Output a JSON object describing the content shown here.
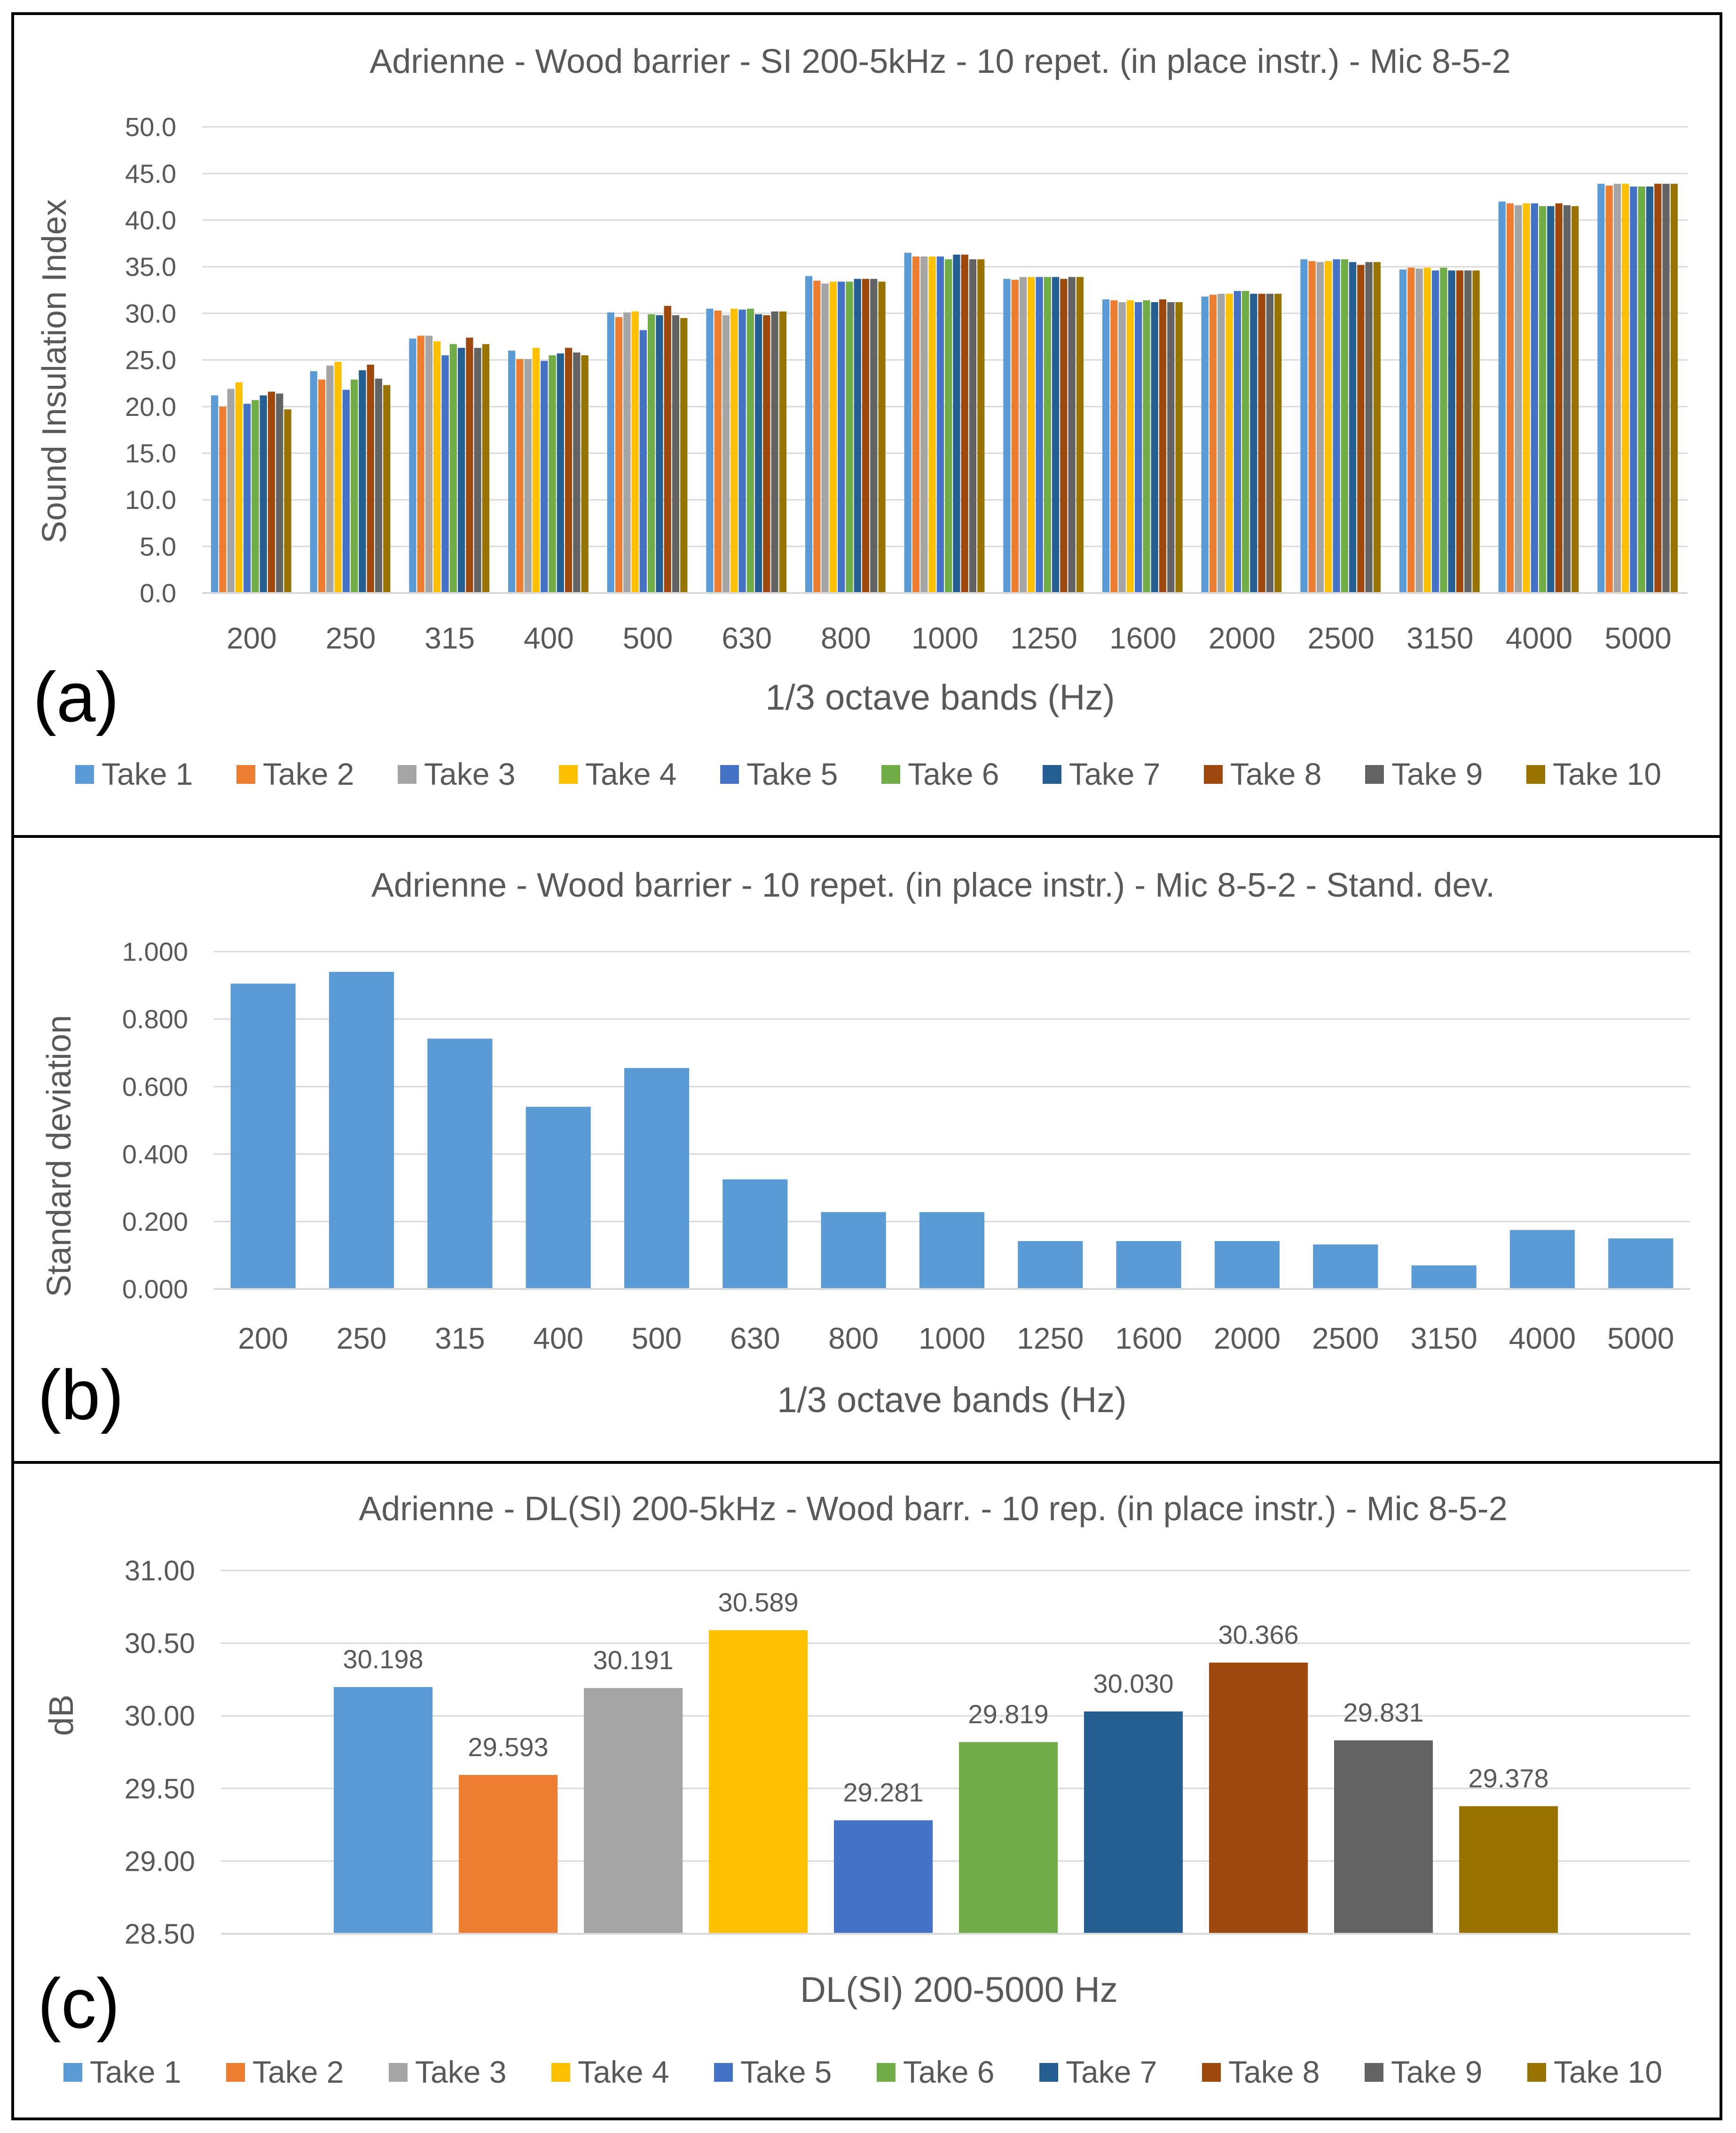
{
  "panels": {
    "a": {
      "label": "(a)"
    },
    "b": {
      "label": "(b)"
    },
    "c": {
      "label": "(c)"
    }
  },
  "colors": {
    "take_colors": [
      "#5B9BD5",
      "#ED7D31",
      "#A5A5A5",
      "#FFC000",
      "#4472C4",
      "#70AD47",
      "#255E91",
      "#9E480E",
      "#636363",
      "#997300"
    ],
    "single_bar": "#5B9BD5",
    "grid": "#D9D9D9",
    "axis": "#D9D9D9",
    "text": "#595959",
    "border": "#000000"
  },
  "chart_data": [
    {
      "id": "a",
      "type": "bar",
      "title": "Adrienne - Wood barrier - SI 200-5kHz - 10 repet. (in place instr.) - Mic 8-5-2",
      "xlabel": "1/3 octave bands (Hz)",
      "ylabel": "Sound Insulation Index",
      "ylim": [
        0,
        50
      ],
      "ytick_step": 5,
      "ytick_labels": [
        "0.0",
        "5.0",
        "10.0",
        "15.0",
        "20.0",
        "25.0",
        "30.0",
        "35.0",
        "40.0",
        "45.0",
        "50.0"
      ],
      "grid": true,
      "legend": "bottom",
      "categories": [
        "200",
        "250",
        "315",
        "400",
        "500",
        "630",
        "800",
        "1000",
        "1250",
        "1600",
        "2000",
        "2500",
        "3150",
        "4000",
        "5000"
      ],
      "series": [
        {
          "name": "Take 1",
          "values": [
            21.2,
            23.8,
            27.3,
            26.0,
            30.1,
            30.5,
            34.0,
            36.5,
            33.7,
            31.5,
            31.8,
            35.8,
            34.7,
            42.0,
            43.9
          ]
        },
        {
          "name": "Take 2",
          "values": [
            20.0,
            22.9,
            27.6,
            25.1,
            29.6,
            30.3,
            33.5,
            36.1,
            33.6,
            31.4,
            32.0,
            35.6,
            34.9,
            41.8,
            43.7
          ]
        },
        {
          "name": "Take 3",
          "values": [
            21.9,
            24.4,
            27.6,
            25.1,
            30.1,
            29.8,
            33.2,
            36.1,
            33.9,
            31.2,
            32.1,
            35.5,
            34.8,
            41.6,
            43.9
          ]
        },
        {
          "name": "Take 4",
          "values": [
            22.6,
            24.8,
            27.0,
            26.3,
            30.2,
            30.5,
            33.4,
            36.1,
            33.9,
            31.4,
            32.1,
            35.6,
            34.9,
            41.8,
            43.9
          ]
        },
        {
          "name": "Take 5",
          "values": [
            20.3,
            21.8,
            25.5,
            24.9,
            28.2,
            30.4,
            33.4,
            36.1,
            33.9,
            31.2,
            32.4,
            35.8,
            34.6,
            41.8,
            43.6
          ]
        },
        {
          "name": "Take 6",
          "values": [
            20.7,
            22.9,
            26.7,
            25.5,
            29.9,
            30.5,
            33.4,
            35.8,
            33.9,
            31.4,
            32.4,
            35.8,
            34.9,
            41.5,
            43.6
          ]
        },
        {
          "name": "Take 7",
          "values": [
            21.2,
            23.9,
            26.3,
            25.7,
            29.8,
            29.9,
            33.7,
            36.3,
            33.9,
            31.2,
            32.1,
            35.5,
            34.6,
            41.5,
            43.6
          ]
        },
        {
          "name": "Take 8",
          "values": [
            21.6,
            24.5,
            27.4,
            26.3,
            30.8,
            29.8,
            33.7,
            36.3,
            33.7,
            31.5,
            32.1,
            35.2,
            34.6,
            41.8,
            43.9
          ]
        },
        {
          "name": "Take 9",
          "values": [
            21.4,
            23.0,
            26.3,
            25.8,
            29.8,
            30.2,
            33.7,
            35.8,
            33.9,
            31.2,
            32.1,
            35.5,
            34.6,
            41.6,
            43.9
          ]
        },
        {
          "name": "Take 10",
          "values": [
            19.7,
            22.3,
            26.7,
            25.5,
            29.5,
            30.2,
            33.4,
            35.8,
            33.9,
            31.2,
            32.1,
            35.5,
            34.6,
            41.5,
            43.9
          ]
        }
      ]
    },
    {
      "id": "b",
      "type": "bar",
      "title": "Adrienne - Wood barrier - 10 repet. (in place instr.) - Mic 8-5-2 - Stand. dev.",
      "xlabel": "1/3 octave bands (Hz)",
      "ylabel": "Standard deviation",
      "ylim": [
        0,
        1
      ],
      "ytick_step": 0.2,
      "ytick_labels": [
        "0.000",
        "0.200",
        "0.400",
        "0.600",
        "0.800",
        "1.000"
      ],
      "grid": true,
      "categories": [
        "200",
        "250",
        "315",
        "400",
        "500",
        "630",
        "800",
        "1000",
        "1250",
        "1600",
        "2000",
        "2500",
        "3150",
        "4000",
        "5000"
      ],
      "values": [
        0.905,
        0.94,
        0.742,
        0.54,
        0.655,
        0.325,
        0.228,
        0.228,
        0.142,
        0.142,
        0.142,
        0.132,
        0.07,
        0.175,
        0.15
      ]
    },
    {
      "id": "c",
      "type": "bar",
      "title": "Adrienne - DL(SI) 200-5kHz - Wood barr. - 10 rep. (in place instr.) - Mic 8-5-2",
      "xlabel": "DL(SI) 200-5000 Hz",
      "ylabel": "dB",
      "ylim": [
        28.5,
        31.0
      ],
      "ytick_step": 0.5,
      "ytick_labels": [
        "28.50",
        "29.00",
        "29.50",
        "30.00",
        "30.50",
        "31.00"
      ],
      "grid": true,
      "legend": "bottom",
      "categories": [
        "DL(SI) 200-5000 Hz"
      ],
      "series": [
        {
          "name": "Take 1",
          "value": 30.198,
          "label": "30.198"
        },
        {
          "name": "Take 2",
          "value": 29.593,
          "label": "29.593"
        },
        {
          "name": "Take 3",
          "value": 30.191,
          "label": "30.191"
        },
        {
          "name": "Take 4",
          "value": 30.589,
          "label": "30.589"
        },
        {
          "name": "Take 5",
          "value": 29.281,
          "label": "29.281"
        },
        {
          "name": "Take 6",
          "value": 29.819,
          "label": "29.819"
        },
        {
          "name": "Take 7",
          "value": 30.03,
          "label": "30.030"
        },
        {
          "name": "Take 8",
          "value": 30.366,
          "label": "30.366"
        },
        {
          "name": "Take 9",
          "value": 29.831,
          "label": "29.831"
        },
        {
          "name": "Take 10",
          "value": 29.378,
          "label": "29.378"
        }
      ]
    }
  ]
}
